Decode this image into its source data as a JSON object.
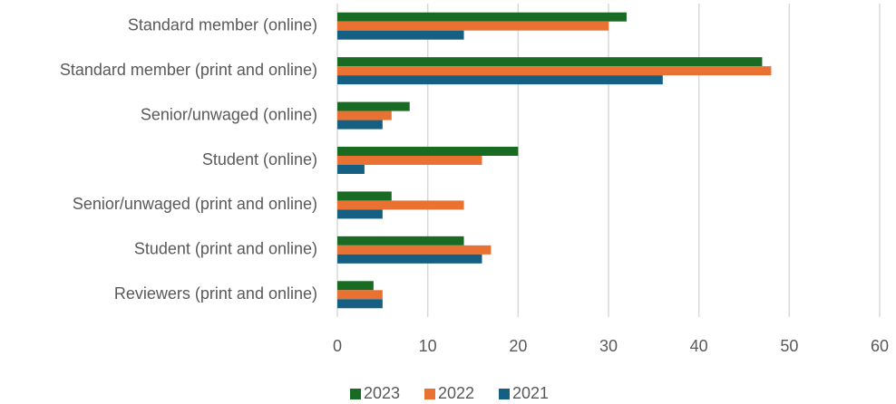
{
  "chart_data": {
    "type": "hbar",
    "categories": [
      "Standard member (online)",
      "Standard member (print and online)",
      "Senior/unwaged (online)",
      "Student (online)",
      "Senior/unwaged (print and online)",
      "Student (print and online)",
      "Reviewers (print and online)"
    ],
    "series": [
      {
        "name": "2023",
        "color": "#196b24",
        "values": [
          32,
          47,
          8,
          20,
          6,
          14,
          4
        ]
      },
      {
        "name": "2022",
        "color": "#e97132",
        "values": [
          30,
          48,
          6,
          16,
          14,
          17,
          5
        ]
      },
      {
        "name": "2021",
        "color": "#156082",
        "values": [
          14,
          36,
          5,
          3,
          5,
          16,
          5
        ]
      }
    ],
    "xlim": [
      0,
      60
    ],
    "xticks": [
      0,
      10,
      20,
      30,
      40,
      50,
      60
    ],
    "grid": true,
    "legend": "bottom"
  }
}
